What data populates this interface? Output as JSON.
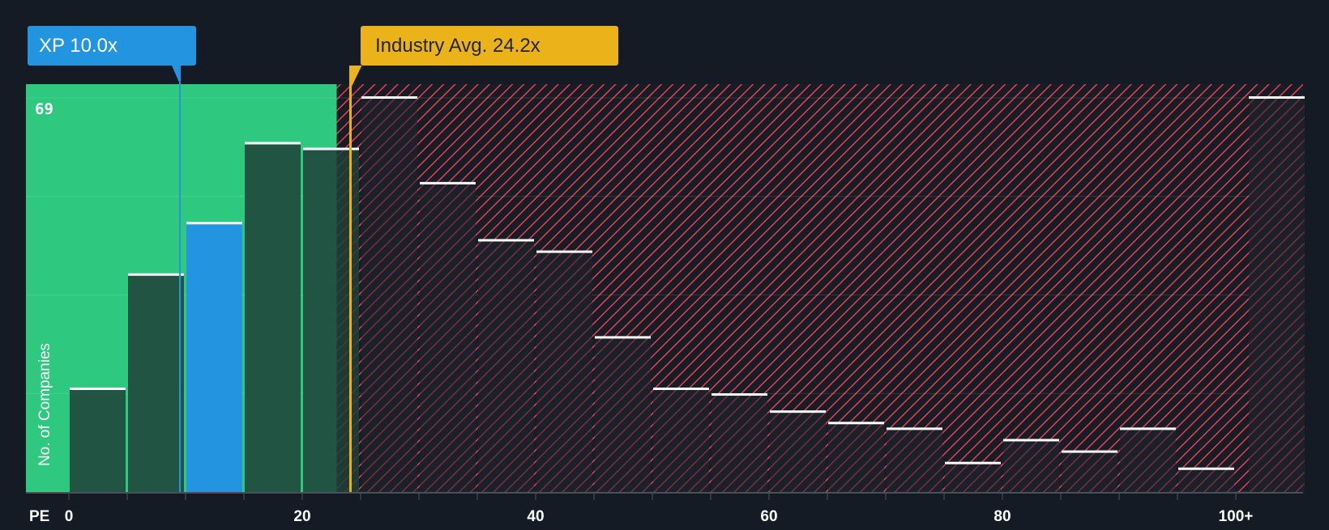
{
  "chart_data": {
    "type": "bar",
    "title": "",
    "xlabel": "PE",
    "ylabel": "No. of Companies",
    "y_max_label": "69",
    "ylim": [
      0,
      69
    ],
    "x_tick_labels": [
      "0",
      "20",
      "40",
      "60",
      "80",
      "100+"
    ],
    "categories": [
      "0-5",
      "5-10",
      "10-15",
      "15-20",
      "20-25",
      "25-30",
      "30-35",
      "35-40",
      "40-45",
      "45-50",
      "50-55",
      "55-60",
      "60-65",
      "65-70",
      "70-75",
      "75-80",
      "80-85",
      "85-90",
      "90-95",
      "95-100",
      "100+"
    ],
    "values": [
      18,
      38,
      47,
      61,
      60,
      69,
      54,
      44,
      42,
      27,
      18,
      17,
      14,
      12,
      11,
      5,
      9,
      7,
      11,
      4,
      69
    ],
    "highlight_index": 2,
    "company": {
      "label": "XP 10.0x",
      "pe": 10.0
    },
    "industry_avg": {
      "label": "Industry Avg. 24.2x",
      "pe": 24.2
    },
    "grid": true,
    "legend": "none",
    "colors": {
      "background": "#151b24",
      "undervalued_zone": "#2ec97f",
      "overvalued_hatch": "#e0444a",
      "company": "#2394df",
      "industry": "#ebb21a",
      "bar_dark": "#1f3f37",
      "bar_top": "#ffffff"
    }
  }
}
